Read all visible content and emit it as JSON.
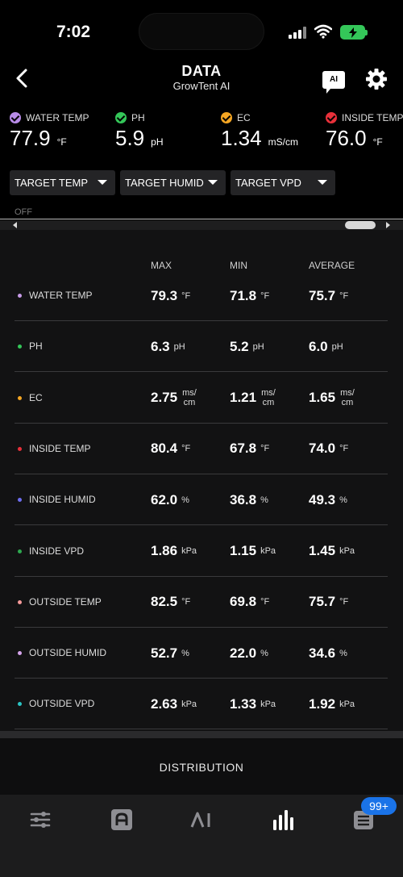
{
  "status": {
    "time": "7:02"
  },
  "header": {
    "title": "DATA",
    "subtitle": "GrowTent AI",
    "ai_label": "AI"
  },
  "readings": [
    {
      "label": "WATER TEMP",
      "value": "77.9",
      "unit": "°F",
      "color": "#b88be8"
    },
    {
      "label": "PH",
      "value": "5.9",
      "unit": "pH",
      "color": "#34c759"
    },
    {
      "label": "EC",
      "value": "1.34",
      "unit": "mS/cm",
      "color": "#f5a623"
    },
    {
      "label": "INSIDE TEMP",
      "value": "76.0",
      "unit": "°F",
      "color": "#e8303a"
    }
  ],
  "filters": [
    {
      "label": "TARGET TEMP"
    },
    {
      "label": "TARGET HUMID"
    },
    {
      "label": "TARGET VPD"
    }
  ],
  "off_label": "OFF",
  "stats": {
    "columns": [
      "MAX",
      "MIN",
      "AVERAGE"
    ],
    "rows": [
      {
        "name": "WATER TEMP",
        "color": "#c79be8",
        "max": "79.3",
        "min": "71.8",
        "avg": "75.7",
        "unit": "°F"
      },
      {
        "name": "PH",
        "color": "#34c759",
        "max": "6.3",
        "min": "5.2",
        "avg": "6.0",
        "unit": "pH"
      },
      {
        "name": "EC",
        "color": "#f5a623",
        "max": "2.75",
        "min": "1.21",
        "avg": "1.65",
        "unit_top": "ms/",
        "unit_bottom": "cm"
      },
      {
        "name": "INSIDE TEMP",
        "color": "#e8303a",
        "max": "80.4",
        "min": "67.8",
        "avg": "74.0",
        "unit": "°F"
      },
      {
        "name": "INSIDE HUMID",
        "color": "#6d6df0",
        "max": "62.0",
        "min": "36.8",
        "avg": "49.3",
        "unit": "%"
      },
      {
        "name": "INSIDE VPD",
        "color": "#2ea84f",
        "max": "1.86",
        "min": "1.15",
        "avg": "1.45",
        "unit": "kPa"
      },
      {
        "name": "OUTSIDE TEMP",
        "color": "#f59a9a",
        "max": "82.5",
        "min": "69.8",
        "avg": "75.7",
        "unit": "°F"
      },
      {
        "name": "OUTSIDE HUMID",
        "color": "#d6a4ec",
        "max": "52.7",
        "min": "22.0",
        "avg": "34.6",
        "unit": "%"
      },
      {
        "name": "OUTSIDE VPD",
        "color": "#2bc4c4",
        "max": "2.63",
        "min": "1.33",
        "avg": "1.92",
        "unit": "kPa"
      }
    ]
  },
  "distribution_label": "DISTRIBUTION",
  "tabbar": {
    "badge": "99+"
  }
}
